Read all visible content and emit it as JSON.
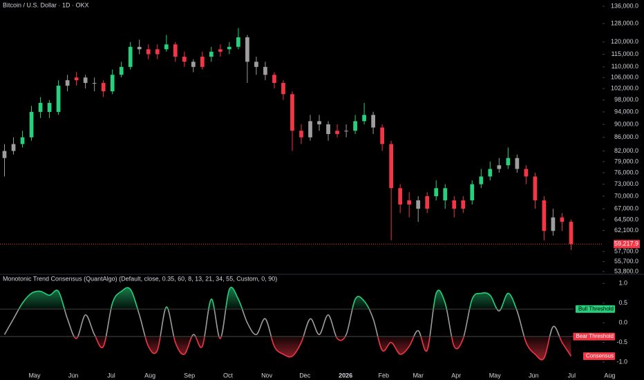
{
  "chart_data": [
    {
      "type": "candlestick",
      "title": "Bitcoin / U.S. Dollar · 1D · OKX",
      "log_scale": true,
      "xlim": [
        -0.5,
        66.5
      ],
      "ylim": [
        53540,
        138990
      ],
      "yticks": [
        {
          "value": 136000,
          "label": "136,000.0"
        },
        {
          "value": 128000,
          "label": "128,000.0"
        },
        {
          "value": 120000,
          "label": "120,000.0"
        },
        {
          "value": 115000,
          "label": "115,000.0"
        },
        {
          "value": 110000,
          "label": "110,000.0"
        },
        {
          "value": 106000,
          "label": "106,000.0"
        },
        {
          "value": 102000,
          "label": "102,000.0"
        },
        {
          "value": 98000,
          "label": "98,000.0"
        },
        {
          "value": 94000,
          "label": "94,000.0"
        },
        {
          "value": 90000,
          "label": "90,000.0"
        },
        {
          "value": 86000,
          "label": "86,000.0"
        },
        {
          "value": 82000,
          "label": "82,000.0"
        },
        {
          "value": 79000,
          "label": "79,000.0"
        },
        {
          "value": 76000,
          "label": "76,000.0"
        },
        {
          "value": 73000,
          "label": "73,000.0"
        },
        {
          "value": 70000,
          "label": "70,000.0"
        },
        {
          "value": 67000,
          "label": "67,000.0"
        },
        {
          "value": 64500,
          "label": "64,500.0"
        },
        {
          "value": 62100,
          "label": "62,100.0"
        },
        {
          "value": 57700,
          "label": "57,700.0"
        },
        {
          "value": 55700,
          "label": "55,700.0"
        },
        {
          "value": 53800,
          "label": "53,800.0"
        }
      ],
      "last_price": {
        "value": 59217.9,
        "label": "59,217.9",
        "color": "#f23645"
      },
      "open": [
        80000,
        82000,
        84000,
        86000,
        94000,
        97000,
        94000,
        103000,
        105000,
        106000,
        104000,
        104000,
        101000,
        107000,
        110000,
        118000,
        117000,
        115000,
        117000,
        119000,
        114000,
        112000,
        110000,
        114000,
        116000,
        117000,
        118000,
        122000,
        112000,
        110000,
        107000,
        104000,
        100000,
        88000,
        86000,
        91000,
        90000,
        87000,
        88000,
        88000,
        91000,
        93000,
        89000,
        84000,
        72000,
        68000,
        69000,
        67000,
        70000,
        72000,
        69000,
        67000,
        69000,
        73000,
        75000,
        77000,
        78000,
        80000,
        77000,
        75000,
        69000,
        62000,
        65000,
        64000
      ],
      "high": [
        84000,
        86000,
        88000,
        96000,
        99000,
        98000,
        105000,
        107000,
        108000,
        107000,
        106000,
        105000,
        109000,
        112000,
        120000,
        121000,
        119000,
        119000,
        123000,
        120000,
        116000,
        113000,
        116000,
        118000,
        119000,
        120000,
        126000,
        123000,
        114000,
        112000,
        108000,
        105000,
        101000,
        90000,
        93000,
        93000,
        91000,
        90000,
        90000,
        93000,
        97000,
        94000,
        90000,
        85000,
        73000,
        71000,
        70000,
        71000,
        74000,
        73000,
        70000,
        70000,
        74000,
        77000,
        79000,
        80000,
        83000,
        81000,
        78000,
        76000,
        70000,
        67000,
        66000,
        64500
      ],
      "low": [
        75000,
        81000,
        83000,
        85000,
        92000,
        92000,
        93000,
        101000,
        103000,
        102000,
        101000,
        99000,
        100000,
        106000,
        109000,
        115000,
        113000,
        113000,
        116000,
        112000,
        110000,
        108000,
        109000,
        112000,
        114000,
        115000,
        117000,
        104000,
        107000,
        105000,
        102000,
        98000,
        82000,
        84000,
        85000,
        88000,
        85000,
        86000,
        86000,
        87000,
        90000,
        87000,
        82000,
        60000,
        66000,
        65000,
        64000,
        66000,
        69000,
        67000,
        65000,
        66000,
        68000,
        72000,
        74000,
        76000,
        77000,
        76000,
        73000,
        67000,
        60000,
        61000,
        62000,
        58000
      ],
      "close": [
        82000,
        84000,
        86000,
        94000,
        97000,
        94000,
        103000,
        105000,
        106000,
        104000,
        104000,
        101000,
        107000,
        110000,
        118000,
        117000,
        115000,
        117000,
        119000,
        114000,
        112000,
        110000,
        114000,
        116000,
        117000,
        118000,
        122000,
        112000,
        110000,
        107000,
        104000,
        100000,
        88000,
        86000,
        91000,
        90000,
        87000,
        88000,
        88000,
        91000,
        93000,
        89000,
        84000,
        72000,
        68000,
        69000,
        67000,
        70000,
        72000,
        69000,
        67000,
        69000,
        73000,
        75000,
        77000,
        78000,
        80000,
        77000,
        75000,
        69000,
        62000,
        65000,
        64000,
        59217.9
      ]
    },
    {
      "type": "line",
      "title": "Monotonic Trend Consensus (QuantAlgo) (Default, close, 0.35, 60, 8, 13, 21, 34, 55, Custom, 0, 90)",
      "xlim": [
        -0.5,
        66.5
      ],
      "ylim": [
        -1.28,
        1.18
      ],
      "yticks": [
        {
          "value": 1,
          "label": "1.0"
        },
        0.5,
        {
          "value": 0,
          "label": "0.0"
        },
        -0.5,
        {
          "value": -1,
          "label": "-1.0"
        }
      ],
      "xticks": [
        {
          "value": 3.34,
          "label": "May"
        },
        {
          "value": 7.65,
          "label": "Jun"
        },
        {
          "value": 11.87,
          "label": "Jul"
        },
        {
          "value": 16.18,
          "label": "Aug"
        },
        {
          "value": 20.56,
          "label": "Sep"
        },
        {
          "value": 24.86,
          "label": "Oct"
        },
        {
          "value": 29.17,
          "label": "Nov"
        },
        {
          "value": 33.4,
          "label": "Dec"
        },
        {
          "value": 37.93,
          "label": "2026"
        },
        {
          "value": 42.16,
          "label": "Feb"
        },
        {
          "value": 46.0,
          "label": "Mar"
        },
        {
          "value": 50.23,
          "label": "Apr"
        },
        {
          "value": 54.53,
          "label": "May"
        },
        {
          "value": 58.84,
          "label": "Jun"
        },
        {
          "value": 63.07,
          "label": "Jul"
        },
        {
          "value": 67.3,
          "label": "Aug"
        }
      ],
      "thresholds": [
        {
          "name": "Bull Threshold",
          "value": 0.35,
          "color": "#26d07c"
        },
        {
          "name": "Bear Threshold",
          "value": -0.35,
          "color": "#f23645"
        }
      ],
      "neutral_color": "#9e9e9e",
      "series": [
        {
          "name": "Consensus",
          "color": "#f23645",
          "values": [
            -0.3,
            0.1,
            0.5,
            0.75,
            0.8,
            0.7,
            0.8,
            0.1,
            -0.4,
            0.2,
            -0.3,
            -0.6,
            0.5,
            0.8,
            0.85,
            0.2,
            -0.6,
            -0.7,
            0.4,
            -0.5,
            -0.8,
            -0.3,
            -0.6,
            0.6,
            -0.4,
            0.85,
            0.6,
            0.0,
            -0.3,
            0.1,
            -0.6,
            -0.8,
            -0.85,
            -0.5,
            0.1,
            -0.3,
            0.2,
            -0.4,
            -0.3,
            0.6,
            0.55,
            0.1,
            -0.7,
            -0.5,
            -0.8,
            -0.6,
            -0.2,
            -0.7,
            0.75,
            0.5,
            -0.6,
            -0.4,
            0.6,
            0.75,
            0.7,
            0.3,
            0.75,
            0.3,
            -0.5,
            -0.8,
            -0.9,
            -0.1,
            -0.5,
            -0.85
          ]
        }
      ]
    }
  ]
}
